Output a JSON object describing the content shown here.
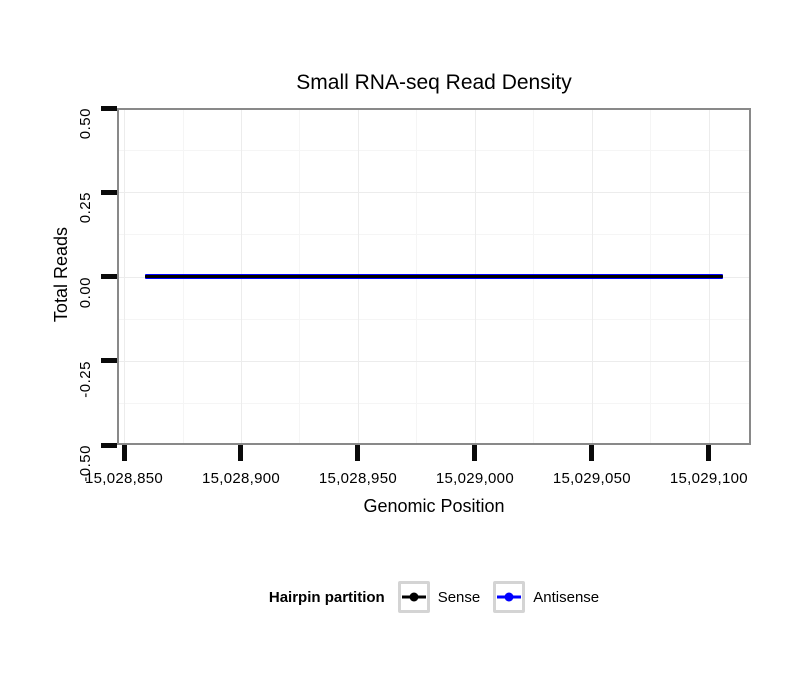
{
  "chart_data": {
    "type": "line",
    "title": "Small RNA-seq Read Density",
    "xlabel": "Genomic Position",
    "ylabel": "Total Reads",
    "xlim": [
      15028847,
      15029118
    ],
    "ylim": [
      -0.5,
      0.5
    ],
    "x_ticks": [
      {
        "value": 15028850,
        "label": "15,028,850"
      },
      {
        "value": 15028900,
        "label": "15,028,900"
      },
      {
        "value": 15028950,
        "label": "15,028,950"
      },
      {
        "value": 15029000,
        "label": "15,029,000"
      },
      {
        "value": 15029050,
        "label": "15,029,050"
      },
      {
        "value": 15029100,
        "label": "15,029,100"
      }
    ],
    "y_ticks": [
      {
        "value": 0.5,
        "label": "0.50"
      },
      {
        "value": 0.25,
        "label": "0.25"
      },
      {
        "value": 0.0,
        "label": "0.00"
      },
      {
        "value": -0.25,
        "label": "-0.25"
      },
      {
        "value": -0.5,
        "label": "-0.50"
      }
    ],
    "grid": {
      "major": true,
      "minor": true
    },
    "series": [
      {
        "name": "Sense",
        "color": "#000000",
        "x": [
          15028859,
          15029106
        ],
        "y": [
          0,
          0
        ]
      },
      {
        "name": "Antisense",
        "color": "#0000FF",
        "x": [
          15028859,
          15029106
        ],
        "y": [
          0,
          0
        ]
      }
    ],
    "legend": {
      "title": "Hairpin partition",
      "position": "bottom",
      "entries": [
        {
          "label": "Sense",
          "color": "#000000"
        },
        {
          "label": "Antisense",
          "color": "#0000FF"
        }
      ]
    },
    "colors": {
      "panel_border": "#898989",
      "grid_major": "#ECECEC",
      "grid_minor": "#F5F5F5",
      "tick": "#0A0A0A",
      "legend_key_border": "#D4D4D4"
    }
  }
}
